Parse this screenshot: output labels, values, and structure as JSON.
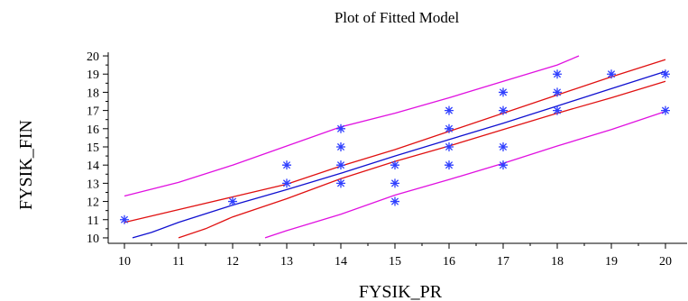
{
  "chart_data": {
    "type": "scatter",
    "title": "Plot of Fitted Model",
    "xlabel": "FYSIK_PR",
    "ylabel": "FYSIK_FIN",
    "xlim": [
      9.7,
      20.4
    ],
    "ylim": [
      9.7,
      20.2
    ],
    "xticks": [
      10,
      11,
      12,
      13,
      14,
      15,
      16,
      17,
      18,
      19,
      20
    ],
    "yticks": [
      10,
      11,
      12,
      13,
      14,
      15,
      16,
      17,
      18,
      19,
      20
    ],
    "grid": false,
    "colors": {
      "points": "#2f3fff",
      "fit": "#1010d0",
      "confidence": "#e01010",
      "prediction": "#e010e0",
      "axis": "#000000"
    },
    "series": [
      {
        "role": "observations",
        "marker": "asterisk",
        "x": [
          10,
          12,
          13,
          13,
          14,
          14,
          14,
          14,
          15,
          15,
          15,
          16,
          16,
          16,
          16,
          17,
          17,
          17,
          17,
          18,
          18,
          18,
          19,
          20,
          20
        ],
        "y": [
          11,
          12,
          13,
          14,
          13,
          14,
          15,
          16,
          12,
          13,
          14,
          14,
          15,
          16,
          17,
          14,
          15,
          17,
          18,
          17,
          18,
          19,
          19,
          17,
          19
        ]
      },
      {
        "role": "fitted-line",
        "x": [
          10.15,
          10.5,
          11,
          12,
          13,
          14,
          15,
          16,
          17,
          18,
          19,
          20
        ],
        "y": [
          10.0,
          10.3,
          10.85,
          11.8,
          12.65,
          13.55,
          14.5,
          15.4,
          16.3,
          17.25,
          18.2,
          19.15
        ]
      },
      {
        "role": "confidence-upper",
        "x": [
          10,
          11,
          12,
          13,
          14,
          15,
          16,
          17,
          18,
          19,
          20
        ],
        "y": [
          10.85,
          11.55,
          12.25,
          12.95,
          13.95,
          14.85,
          15.85,
          16.85,
          17.85,
          18.85,
          19.8
        ]
      },
      {
        "role": "confidence-lower",
        "x": [
          11,
          11.5,
          12,
          13,
          14,
          15,
          16,
          17,
          18,
          19,
          20
        ],
        "y": [
          10.0,
          10.5,
          11.15,
          12.15,
          13.25,
          14.2,
          15.05,
          15.95,
          16.85,
          17.7,
          18.6
        ]
      },
      {
        "role": "prediction-upper",
        "x": [
          10,
          11,
          12,
          13,
          14,
          15,
          16,
          17,
          18,
          18.4
        ],
        "y": [
          12.3,
          13.05,
          14.0,
          15.05,
          16.1,
          16.85,
          17.7,
          18.6,
          19.5,
          20.0
        ]
      },
      {
        "role": "prediction-lower",
        "x": [
          12.6,
          13,
          14,
          15,
          16,
          17,
          18,
          19,
          20
        ],
        "y": [
          10.0,
          10.4,
          11.3,
          12.35,
          13.2,
          14.1,
          15.05,
          15.95,
          16.95
        ]
      }
    ]
  }
}
